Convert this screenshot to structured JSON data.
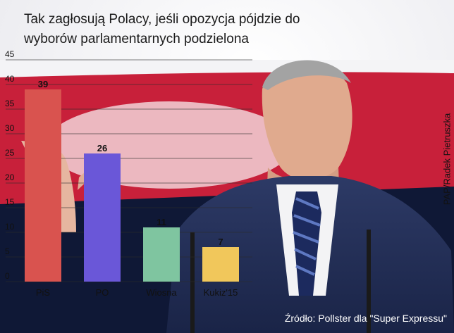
{
  "title_lines": [
    "Tak zagłosują Polacy, jeśli opozycja pójdzie do",
    "wyborów parlamentarnych podzielona"
  ],
  "credit": "PAP/Radek Pietruszka",
  "source": "Źródło: Pollster dla \"Super Expressu\"",
  "chart_data": {
    "type": "bar",
    "categories": [
      "PiS",
      "PO",
      "Wiosna",
      "Kukiz'15"
    ],
    "values": [
      39,
      26,
      11,
      7
    ],
    "data_labels": [
      "39",
      "26",
      "11",
      "7"
    ],
    "colors": [
      "#d9534f",
      "#6a57d8",
      "#7fc5a0",
      "#f1c75b"
    ],
    "yticks": [
      0,
      5,
      10,
      15,
      20,
      25,
      30,
      35,
      40,
      45
    ],
    "ylim": [
      0,
      45
    ],
    "grid": true
  }
}
